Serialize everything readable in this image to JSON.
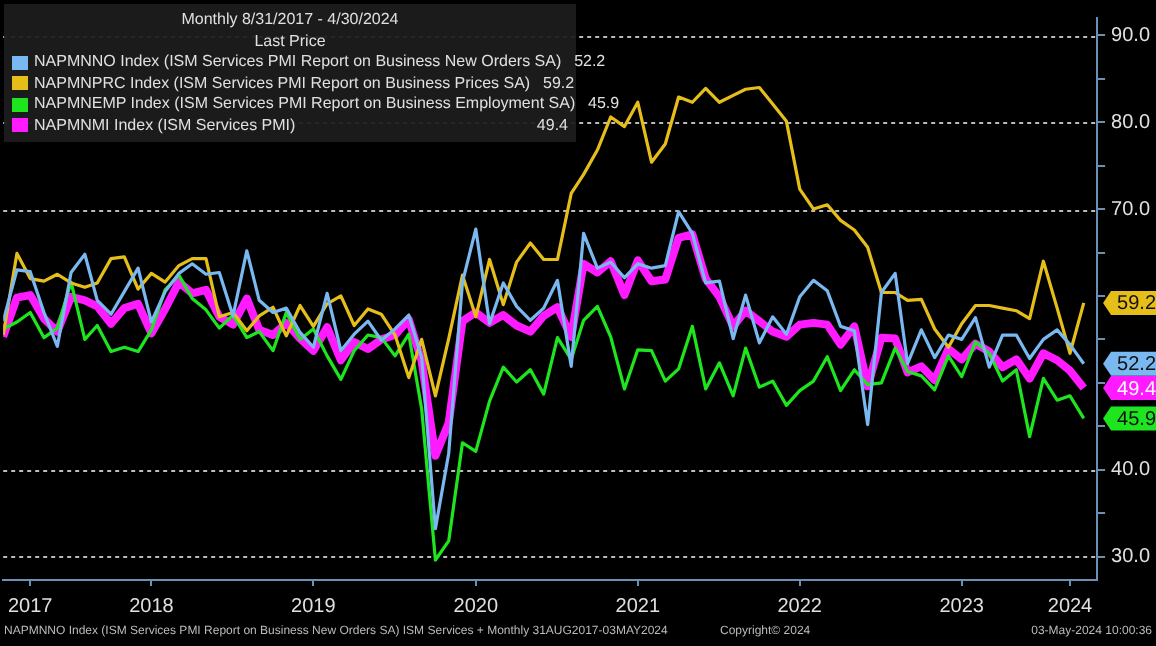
{
  "chart_data": {
    "type": "line",
    "legend_title": "Monthly 8/31/2017 - 4/30/2024",
    "x": [
      "2017-08",
      "2017-09",
      "2017-10",
      "2017-11",
      "2017-12",
      "2018-01",
      "2018-02",
      "2018-03",
      "2018-04",
      "2018-05",
      "2018-06",
      "2018-07",
      "2018-08",
      "2018-09",
      "2018-10",
      "2018-11",
      "2018-12",
      "2019-01",
      "2019-02",
      "2019-03",
      "2019-04",
      "2019-05",
      "2019-06",
      "2019-07",
      "2019-08",
      "2019-09",
      "2019-10",
      "2019-11",
      "2019-12",
      "2020-01",
      "2020-02",
      "2020-03",
      "2020-04",
      "2020-05",
      "2020-06",
      "2020-07",
      "2020-08",
      "2020-09",
      "2020-10",
      "2020-11",
      "2020-12",
      "2021-01",
      "2021-02",
      "2021-03",
      "2021-04",
      "2021-05",
      "2021-06",
      "2021-07",
      "2021-08",
      "2021-09",
      "2021-10",
      "2021-11",
      "2021-12",
      "2022-01",
      "2022-02",
      "2022-03",
      "2022-04",
      "2022-05",
      "2022-06",
      "2022-07",
      "2022-08",
      "2022-09",
      "2022-10",
      "2022-11",
      "2022-12",
      "2023-01",
      "2023-02",
      "2023-03",
      "2023-04",
      "2023-05",
      "2023-06",
      "2023-07",
      "2023-08",
      "2023-09",
      "2023-10",
      "2023-11",
      "2023-12",
      "2024-01",
      "2024-02",
      "2024-03",
      "2024-04"
    ],
    "series": [
      {
        "name": "NAPMNNO Index (ISM Services PMI Report on Business New Orders SA)",
        "color": "#79b8f0",
        "values": [
          57.1,
          63.0,
          62.8,
          58.1,
          54.2,
          62.7,
          64.8,
          59.5,
          57.9,
          60.5,
          63.2,
          57.0,
          60.5,
          62.6,
          63.7,
          62.5,
          62.7,
          57.7,
          65.2,
          59.5,
          58.1,
          58.6,
          55.8,
          54.1,
          60.3,
          53.7,
          55.6,
          57.1,
          54.9,
          56.2,
          57.8,
          52.9,
          33.2,
          41.9,
          61.6,
          67.7,
          56.8,
          61.5,
          58.8,
          57.2,
          58.6,
          61.8,
          51.9,
          67.2,
          63.2,
          63.9,
          62.1,
          63.7,
          63.2,
          63.5,
          69.7,
          67.2,
          61.5,
          61.7,
          55.1,
          60.1,
          54.6,
          57.6,
          55.6,
          59.9,
          61.8,
          60.6,
          56.5,
          56.0,
          45.2,
          60.4,
          62.6,
          52.2,
          56.1,
          52.9,
          55.5,
          55.0,
          57.5,
          51.8,
          55.5,
          55.5,
          52.8,
          55.0,
          56.1,
          54.4,
          52.2
        ],
        "value_labels": [
          null,
          null,
          null,
          null,
          null,
          null,
          null,
          null,
          null,
          null,
          null,
          null,
          null,
          null,
          null,
          null,
          null,
          null,
          null,
          null,
          null,
          null,
          null,
          null,
          null,
          null,
          null,
          null,
          null,
          null,
          null,
          null,
          null,
          null,
          null,
          null,
          null,
          null,
          null,
          null,
          null,
          null,
          null,
          null,
          null,
          null,
          null,
          null,
          null,
          null,
          null,
          null,
          null,
          null,
          null,
          null,
          null,
          null,
          null,
          null,
          null,
          null,
          null,
          null,
          null,
          null,
          null,
          null,
          null,
          null,
          null,
          null,
          null,
          null,
          null,
          null,
          null,
          null,
          null,
          null,
          "52.2"
        ]
      },
      {
        "name": "NAPMNPRC Index (ISM Services PMI Report on Business Prices SA)",
        "color": "#e6be1a",
        "values": [
          55.5,
          64.9,
          62.0,
          61.7,
          62.5,
          61.5,
          61.0,
          61.5,
          64.3,
          64.5,
          60.8,
          62.6,
          61.6,
          63.5,
          64.3,
          64.3,
          57.6,
          58.1,
          56.0,
          57.7,
          58.7,
          55.4,
          58.9,
          56.5,
          59.1,
          60.0,
          56.6,
          58.5,
          57.9,
          55.5,
          50.6,
          55.0,
          48.5,
          55.1,
          62.4,
          57.6,
          64.2,
          59.0,
          63.9,
          66.1,
          64.2,
          64.2,
          71.8,
          74.0,
          76.8,
          80.6,
          79.5,
          82.3,
          75.4,
          77.5,
          82.9,
          82.3,
          83.9,
          82.3,
          83.1,
          83.8,
          84.0,
          82.1,
          80.1,
          72.3,
          70.0,
          70.5,
          68.7,
          67.6,
          65.6,
          60.4,
          60.4,
          59.5,
          59.6,
          56.2,
          54.1,
          56.8,
          58.9,
          58.9,
          58.6,
          58.3,
          57.4,
          64.0,
          58.6,
          53.4,
          59.2
        ],
        "value_labels": [
          null,
          null,
          null,
          null,
          null,
          null,
          null,
          null,
          null,
          null,
          null,
          null,
          null,
          null,
          null,
          null,
          null,
          null,
          null,
          null,
          null,
          null,
          null,
          null,
          null,
          null,
          null,
          null,
          null,
          null,
          null,
          null,
          null,
          null,
          null,
          null,
          null,
          null,
          null,
          null,
          null,
          null,
          null,
          null,
          null,
          null,
          null,
          null,
          null,
          null,
          null,
          null,
          null,
          null,
          null,
          null,
          null,
          null,
          null,
          null,
          null,
          null,
          null,
          null,
          null,
          null,
          null,
          null,
          null,
          null,
          null,
          null,
          null,
          null,
          null,
          null,
          null,
          null,
          null,
          null,
          "59.2"
        ]
      },
      {
        "name": "NAPMNEMP Index (ISM Services PMI Report on Business Employment SA)",
        "color": "#1ee61e",
        "values": [
          56.2,
          57.0,
          58.1,
          55.2,
          56.3,
          61.6,
          55.0,
          56.6,
          53.6,
          54.1,
          53.6,
          56.1,
          60.7,
          62.4,
          59.7,
          58.4,
          56.3,
          57.8,
          55.2,
          55.9,
          53.7,
          58.1,
          55.0,
          56.2,
          53.1,
          50.4,
          53.7,
          55.5,
          55.2,
          53.1,
          55.6,
          47.0,
          29.6,
          31.8,
          43.1,
          42.1,
          47.9,
          51.8,
          50.1,
          51.5,
          48.7,
          55.2,
          52.7,
          57.2,
          58.8,
          55.3,
          49.3,
          53.8,
          53.7,
          50.2,
          51.6,
          56.5,
          49.3,
          52.3,
          48.5,
          54.0,
          49.5,
          50.2,
          47.4,
          49.1,
          50.2,
          53.0,
          49.1,
          51.5,
          49.8,
          50.0,
          54.0,
          51.3,
          50.8,
          49.2,
          53.1,
          50.7,
          54.7,
          53.4,
          50.2,
          51.5,
          43.8,
          50.5,
          48.0,
          48.5,
          45.9
        ],
        "value_labels": [
          null,
          null,
          null,
          null,
          null,
          null,
          null,
          null,
          null,
          null,
          null,
          null,
          null,
          null,
          null,
          null,
          null,
          null,
          null,
          null,
          null,
          null,
          null,
          null,
          null,
          null,
          null,
          null,
          null,
          null,
          null,
          null,
          null,
          null,
          null,
          null,
          null,
          null,
          null,
          null,
          null,
          null,
          null,
          null,
          null,
          null,
          null,
          null,
          null,
          null,
          null,
          null,
          null,
          null,
          null,
          null,
          null,
          null,
          null,
          null,
          null,
          null,
          null,
          null,
          null,
          null,
          null,
          null,
          null,
          null,
          null,
          null,
          null,
          null,
          null,
          null,
          null,
          null,
          null,
          null,
          "45.9"
        ]
      },
      {
        "name": "NAPMNMI Index (ISM Services PMI)",
        "color": "#ff1aff",
        "values": [
          55.3,
          59.8,
          60.1,
          57.4,
          55.9,
          59.9,
          59.5,
          58.8,
          56.8,
          58.6,
          59.1,
          55.7,
          58.5,
          61.6,
          60.3,
          60.7,
          57.6,
          56.7,
          59.7,
          56.1,
          55.5,
          56.9,
          55.1,
          53.7,
          56.4,
          52.6,
          54.7,
          53.9,
          55.0,
          55.5,
          57.3,
          52.5,
          41.6,
          45.4,
          57.1,
          58.1,
          56.9,
          57.8,
          56.6,
          55.9,
          57.7,
          58.7,
          55.3,
          63.7,
          62.7,
          64.0,
          60.1,
          64.1,
          61.7,
          61.9,
          66.7,
          67.1,
          62.0,
          59.9,
          56.5,
          58.3,
          57.1,
          55.9,
          55.3,
          56.7,
          56.9,
          56.7,
          54.4,
          56.5,
          49.6,
          55.2,
          55.1,
          51.2,
          51.9,
          50.3,
          53.9,
          52.7,
          54.5,
          53.6,
          51.8,
          52.7,
          50.5,
          53.4,
          52.6,
          51.4,
          49.4
        ],
        "value_labels": [
          null,
          null,
          null,
          null,
          null,
          null,
          null,
          null,
          null,
          null,
          null,
          null,
          null,
          null,
          null,
          null,
          null,
          null,
          null,
          null,
          null,
          null,
          null,
          null,
          null,
          null,
          null,
          null,
          null,
          null,
          null,
          null,
          null,
          null,
          null,
          null,
          null,
          null,
          null,
          null,
          null,
          null,
          null,
          null,
          null,
          null,
          null,
          null,
          null,
          null,
          null,
          null,
          null,
          null,
          null,
          null,
          null,
          null,
          null,
          null,
          null,
          null,
          null,
          null,
          null,
          null,
          null,
          null,
          null,
          null,
          null,
          null,
          null,
          null,
          null,
          null,
          null,
          null,
          null,
          null,
          "49.4"
        ]
      }
    ],
    "xlim": [
      "2017-08",
      "2024-05"
    ],
    "xticks": [
      {
        "value": "2017-10",
        "label": "2017"
      },
      {
        "value": "2018-07",
        "label": "2018"
      },
      {
        "value": "2019-07",
        "label": "2019"
      },
      {
        "value": "2020-07",
        "label": "2020"
      },
      {
        "value": "2021-07",
        "label": "2021"
      },
      {
        "value": "2022-07",
        "label": "2022"
      },
      {
        "value": "2023-07",
        "label": "2023"
      },
      {
        "value": "2024-03",
        "label": "2024"
      }
    ],
    "ylim": [
      27.3,
      92
    ],
    "yticks": [
      {
        "value": 30,
        "label": "30.0"
      },
      {
        "value": 35,
        "label": null
      },
      {
        "value": 40,
        "label": "40.0"
      },
      {
        "value": 45,
        "label": null
      },
      {
        "value": 50,
        "label": null
      },
      {
        "value": 55,
        "label": null
      },
      {
        "value": 60,
        "label": null
      },
      {
        "value": 65,
        "label": null
      },
      {
        "value": 70,
        "label": "70.0"
      },
      {
        "value": 75,
        "label": null
      },
      {
        "value": 80,
        "label": "80.0"
      },
      {
        "value": 85,
        "label": null
      },
      {
        "value": 90,
        "label": "90.0"
      }
    ],
    "grid": "y",
    "legend": "top left",
    "marker": "none",
    "line_style": "solid",
    "annotations": [
      "Last Price",
      "NAPMNNO Index (ISM Services PMI Report on Business New Orders SA) ISM Services + Monthly 31AUG2017-03MAY2024",
      "Copyright© 2024",
      "03-May-2024 10:00:36"
    ]
  }
}
